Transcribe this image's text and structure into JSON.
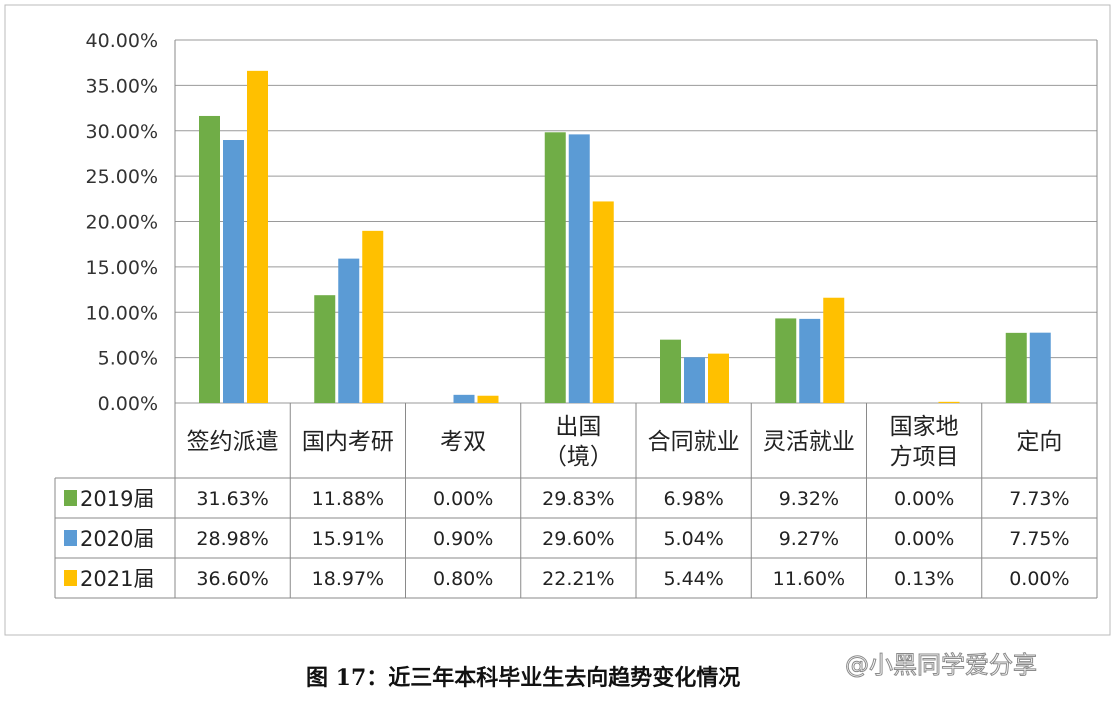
{
  "chart_data": {
    "type": "bar",
    "title": "图 17：近三年本科毕业生去向趋势变化情况",
    "categories": [
      [
        "签约派遣"
      ],
      [
        "国内考研"
      ],
      [
        "考双"
      ],
      [
        "出国",
        "（境）"
      ],
      [
        "合同就业"
      ],
      [
        "灵活就业"
      ],
      [
        "国家地",
        "方项目"
      ],
      [
        "定向"
      ]
    ],
    "ylim": [
      0,
      40
    ],
    "yticks": [
      "0.00%",
      "5.00%",
      "10.00%",
      "15.00%",
      "20.00%",
      "25.00%",
      "30.00%",
      "35.00%",
      "40.00%"
    ],
    "grid": true,
    "legend": "data-table-left",
    "series": [
      {
        "name": "2019届",
        "color": "#70AD47",
        "values": [
          31.63,
          11.88,
          0.0,
          29.83,
          6.98,
          9.32,
          0.0,
          7.73
        ],
        "labels": [
          "31.63%",
          "11.88%",
          "0.00%",
          "29.83%",
          "6.98%",
          "9.32%",
          "0.00%",
          "7.73%"
        ]
      },
      {
        "name": "2020届",
        "color": "#5B9BD5",
        "values": [
          28.98,
          15.91,
          0.9,
          29.6,
          5.04,
          9.27,
          0.0,
          7.75
        ],
        "labels": [
          "28.98%",
          "15.91%",
          "0.90%",
          "29.60%",
          "5.04%",
          "9.27%",
          "0.00%",
          "7.75%"
        ]
      },
      {
        "name": "2021届",
        "color": "#FFC000",
        "values": [
          36.6,
          18.97,
          0.8,
          22.21,
          5.44,
          11.6,
          0.13,
          0.0
        ],
        "labels": [
          "36.60%",
          "18.97%",
          "0.80%",
          "22.21%",
          "5.44%",
          "11.60%",
          "0.13%",
          "0.00%"
        ]
      }
    ]
  },
  "caption": "图 17：近三年本科毕业生去向趋势变化情况",
  "watermark": "@小黑同学爱分享"
}
